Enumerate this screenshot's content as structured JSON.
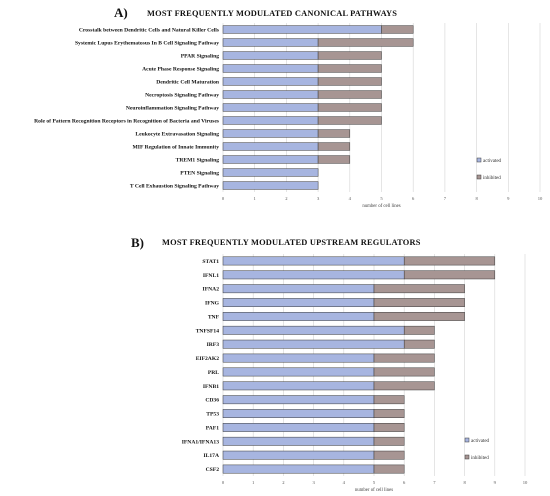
{
  "colors": {
    "activated": "#a7b5e0",
    "inhibited": "#a79593",
    "bar_stroke": "#3a3a3a",
    "grid": "#d4d4d4"
  },
  "chart_data": [
    {
      "type": "bar",
      "orientation": "horizontal",
      "stacked": true,
      "panel_letter": "A)",
      "title": "MOST FREQUENTLY MODULATED CANONICAL PATHWAYS",
      "xlabel": "number of cell lines",
      "ylabel": "",
      "xlim": [
        0,
        10
      ],
      "xticks": [
        "0",
        "1",
        "2",
        "3",
        "4",
        "5",
        "6",
        "7",
        "8",
        "9",
        "10"
      ],
      "grid": "vertical",
      "legend_position": "right",
      "categories": [
        "Crosstalk between Dendritic Cells and Natural Killer Cells",
        "Systemic Lupus Erythematosus In B Cell Signaling Pathway",
        "PPAR Signaling",
        "Acute Phase Response Signaling",
        "Dendritic Cell Maturation",
        "Necroptosis Signaling Pathway",
        "Neuroinflammation Signaling Pathway",
        "Role of Pattern Recognition Receptors in Recognition of Bacteria and Viruses",
        "Leukocyte Extravasation Signaling",
        "MIF Regulation of Innate Immunity",
        "TREM1 Signaling",
        "PTEN Signaling",
        "T Cell Exhaustion Signaling Pathway"
      ],
      "series": [
        {
          "name": "activated",
          "values": [
            5,
            3,
            3,
            3,
            3,
            3,
            3,
            3,
            3,
            3,
            3,
            3,
            3
          ]
        },
        {
          "name": "inhibited",
          "values": [
            1,
            3,
            2,
            2,
            2,
            2,
            2,
            2,
            1,
            1,
            1,
            0,
            0
          ]
        }
      ]
    },
    {
      "type": "bar",
      "orientation": "horizontal",
      "stacked": true,
      "panel_letter": "B)",
      "title": "MOST FREQUENTLY MODULATED UPSTREAM REGULATORS",
      "xlabel": "number of cell lines",
      "ylabel": "",
      "xlim": [
        0,
        10
      ],
      "xticks": [
        "0",
        "1",
        "2",
        "3",
        "4",
        "5",
        "6",
        "7",
        "8",
        "9",
        "10"
      ],
      "grid": "vertical",
      "legend_position": "right",
      "categories": [
        "STAT1",
        "IFNL1",
        "IFNA2",
        "IFNG",
        "TNF",
        "TNFSF14",
        "IRF3",
        "EIF2AK2",
        "PRL",
        "IFNB1",
        "CD36",
        "TP53",
        "PAF1",
        "IFNA1/IFNA13",
        "IL17A",
        "CSF2"
      ],
      "series": [
        {
          "name": "activated",
          "values": [
            6,
            6,
            5,
            5,
            5,
            6,
            6,
            5,
            5,
            5,
            5,
            5,
            5,
            5,
            5,
            5
          ]
        },
        {
          "name": "inhibited",
          "values": [
            3,
            3,
            3,
            3,
            3,
            1,
            1,
            2,
            2,
            2,
            1,
            1,
            1,
            1,
            1,
            1
          ]
        }
      ]
    }
  ]
}
